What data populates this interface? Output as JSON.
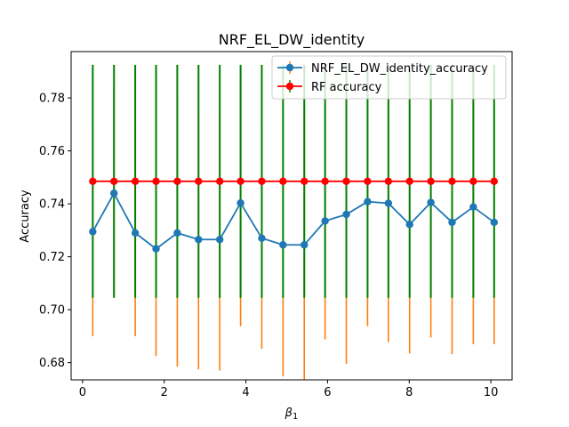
{
  "chart_data": {
    "type": "line",
    "title": "NRF_EL_DW_identity",
    "xlabel": "β",
    "xlabel_sub": "1",
    "ylabel": "Accuracy",
    "xlim": [
      -0.28,
      10.52
    ],
    "ylim": [
      0.6735,
      0.7975
    ],
    "xticks": [
      0,
      2,
      4,
      6,
      8,
      10
    ],
    "xtick_labels": [
      "0",
      "2",
      "4",
      "6",
      "8",
      "10"
    ],
    "yticks": [
      0.68,
      0.7,
      0.72,
      0.74,
      0.76,
      0.78
    ],
    "ytick_labels": [
      "0.68",
      "0.70",
      "0.72",
      "0.74",
      "0.76",
      "0.78"
    ],
    "legend_position": "top-right",
    "x": [
      0.25,
      0.77,
      1.29,
      1.8,
      2.32,
      2.84,
      3.36,
      3.87,
      4.39,
      4.91,
      5.43,
      5.94,
      6.46,
      6.98,
      7.49,
      8.01,
      8.53,
      9.05,
      9.57,
      10.08
    ],
    "series": [
      {
        "name": "NRF_EL_DW_identity_accuracy",
        "color": "#1f77b4",
        "errorbar_color": "#ff7f0e",
        "values": [
          0.7295,
          0.744,
          0.729,
          0.723,
          0.729,
          0.7265,
          0.7265,
          0.7403,
          0.727,
          0.7245,
          0.7245,
          0.7335,
          0.736,
          0.7408,
          0.7402,
          0.7322,
          0.7405,
          0.733,
          0.7388,
          0.733
        ],
        "err_low": [
          0.69,
          0.7045,
          0.69,
          0.6825,
          0.6785,
          0.6775,
          0.677,
          0.6938,
          0.6852,
          0.6748,
          0.6735,
          0.6888,
          0.6795,
          0.6938,
          0.6878,
          0.6835,
          0.6895,
          0.6832,
          0.687,
          0.687
        ],
        "err_high": [
          0.7695,
          0.7835,
          0.768,
          0.7635,
          0.7795,
          0.7755,
          0.776,
          0.7868,
          0.7688,
          0.7742,
          0.7755,
          0.7782,
          0.7925,
          0.7878,
          0.7926,
          0.7809,
          0.7915,
          0.7828,
          0.7906,
          0.779
        ]
      },
      {
        "name": "RF accuracy",
        "color": "#ff0000",
        "errorbar_color": "#008000",
        "values": [
          0.7485,
          0.7485,
          0.7485,
          0.7485,
          0.7485,
          0.7485,
          0.7485,
          0.7485,
          0.7485,
          0.7485,
          0.7485,
          0.7485,
          0.7485,
          0.7485,
          0.7485,
          0.7485,
          0.7485,
          0.7485,
          0.7485,
          0.7485
        ],
        "err_low": [
          0.7045,
          0.7045,
          0.7045,
          0.7045,
          0.7045,
          0.7045,
          0.7045,
          0.7045,
          0.7045,
          0.7045,
          0.7045,
          0.7045,
          0.7045,
          0.7045,
          0.7045,
          0.7045,
          0.7045,
          0.7045,
          0.7045,
          0.7045
        ],
        "err_high": [
          0.7925,
          0.7925,
          0.7925,
          0.7925,
          0.7925,
          0.7925,
          0.7925,
          0.7925,
          0.7925,
          0.7925,
          0.7925,
          0.7925,
          0.7925,
          0.7925,
          0.7925,
          0.7925,
          0.7925,
          0.7925,
          0.7925,
          0.7925
        ]
      }
    ]
  }
}
